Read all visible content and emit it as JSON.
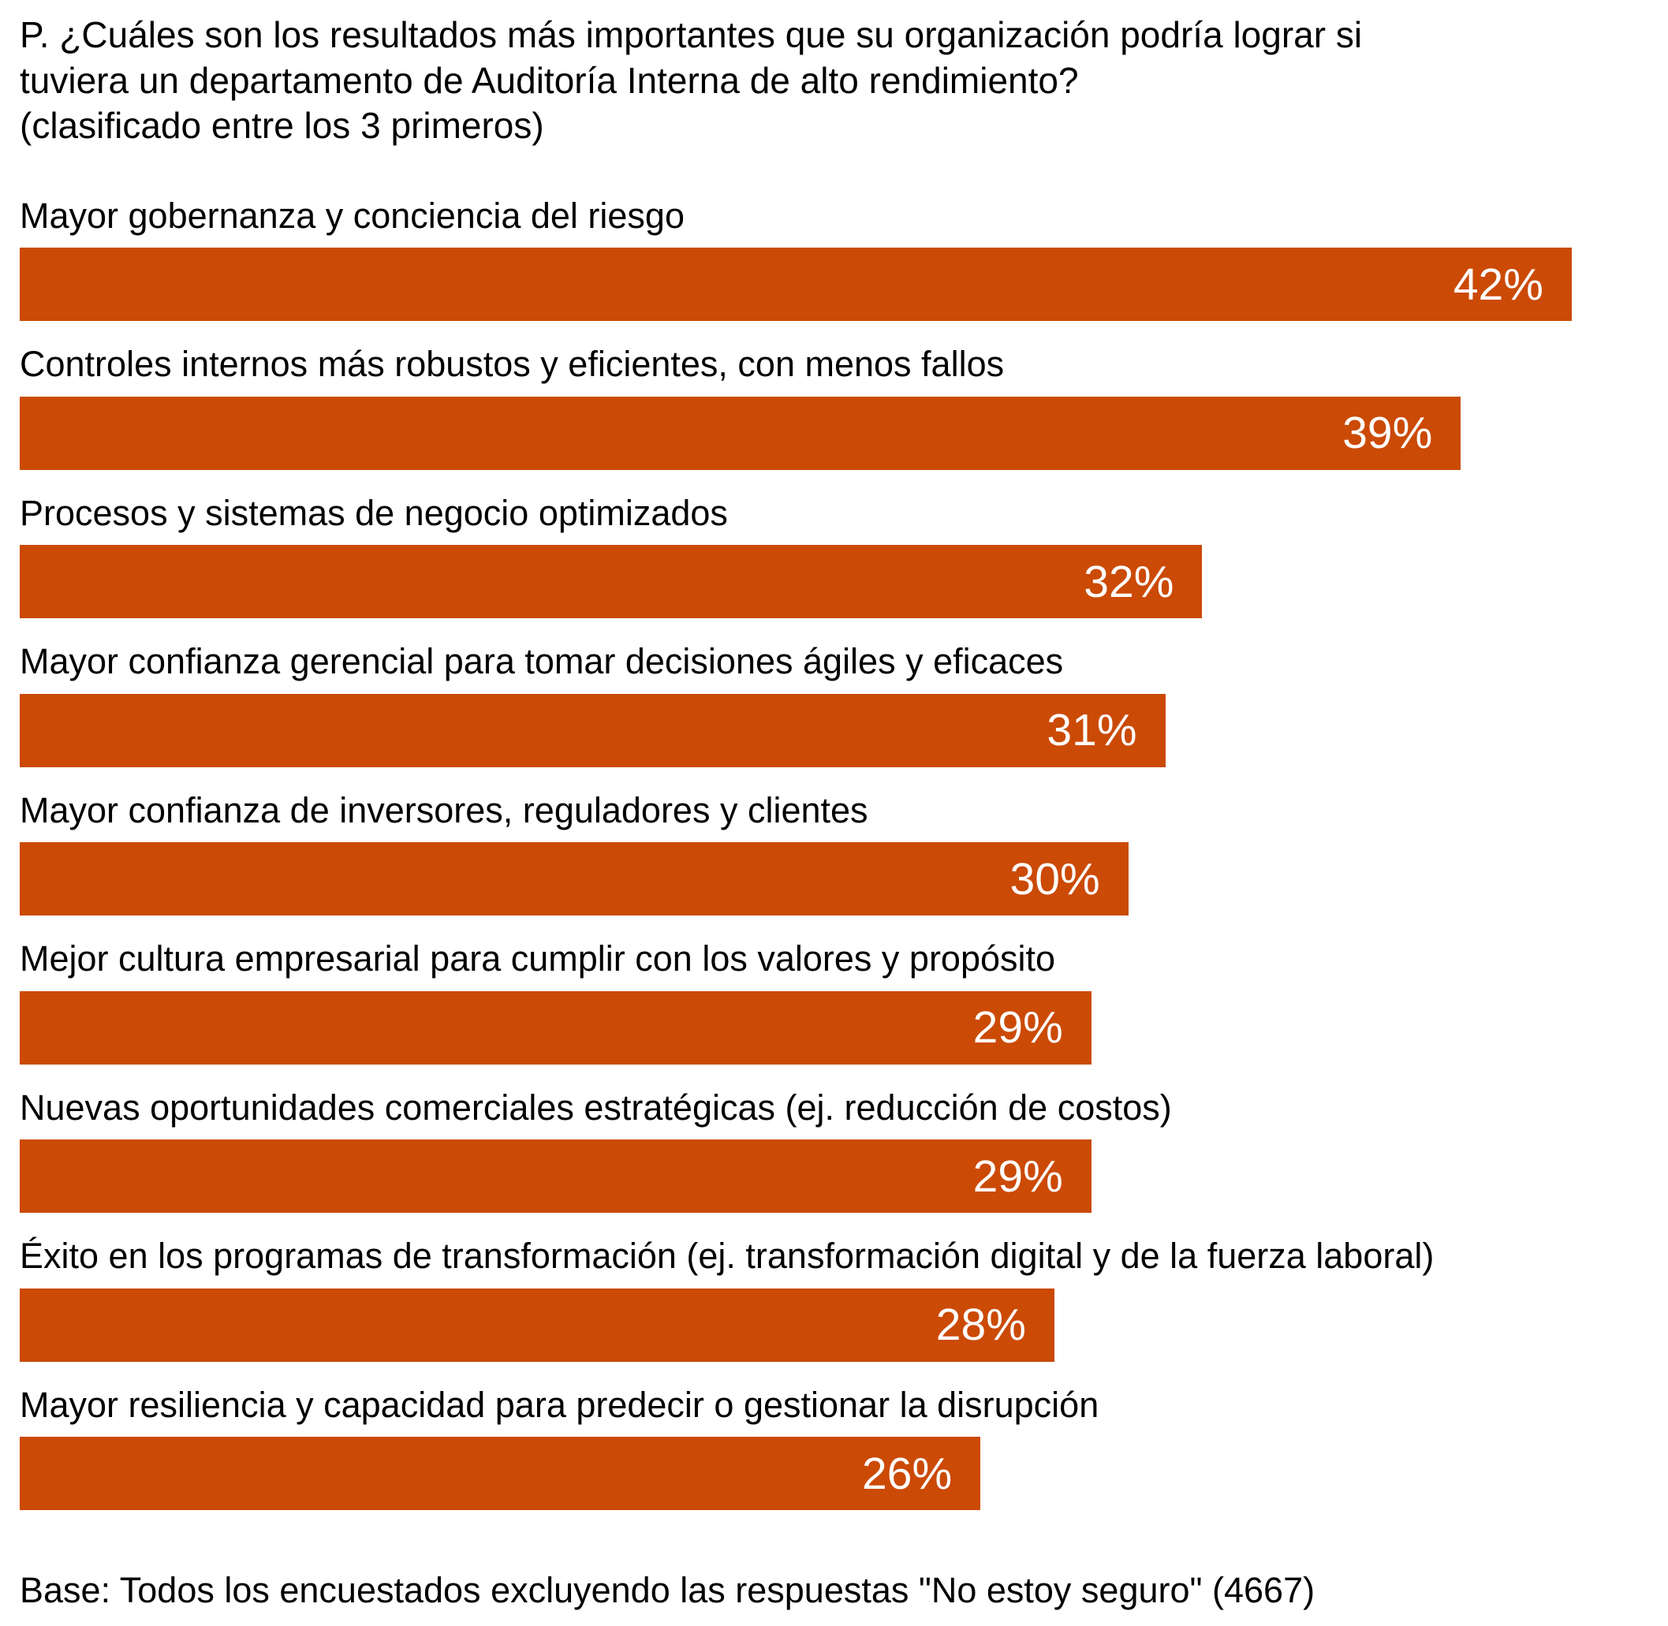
{
  "title": {
    "lines": [
      "P. ¿Cuáles son los resultados más importantes que su organización podría lograr si",
      "tuviera un departamento de Auditoría Interna de alto rendimiento?",
      "(clasificado entre los 3 primeros)"
    ],
    "full_text": "P. ¿Cuáles son los resultados más importantes que su organización podría lograr si tuviera un departamento de Auditoría Interna de alto rendimiento? (clasificado entre los 3 primeros)"
  },
  "base_note": "Base: Todos los encuestados excluyendo las respuestas \"No estoy seguro\" (4667)",
  "colors": {
    "bar": "#CB4A05",
    "label_text": "#000000",
    "value_text": "#FFFFFF",
    "background": "#FFFFFF"
  },
  "chart_data": {
    "type": "bar",
    "orientation": "horizontal",
    "title": "P. ¿Cuáles son los resultados más importantes que su organización podría lograr si tuviera un departamento de Auditoría Interna de alto rendimiento? (clasificado entre los 3 primeros)",
    "categories": [
      "Mayor gobernanza y conciencia del riesgo",
      "Controles internos más robustos y eficientes, con menos fallos",
      "Procesos y sistemas de negocio optimizados",
      "Mayor confianza gerencial para tomar decisiones ágiles y eficaces",
      "Mayor confianza de inversores, reguladores y clientes",
      "Mejor cultura empresarial para cumplir con los valores y propósito",
      "Nuevas oportunidades comerciales estratégicas (ej. reducción de costos)",
      "Éxito en los programas de transformación (ej. transformación digital y de la fuerza laboral)",
      "Mayor resiliencia y capacidad para predecir o gestionar la disrupción"
    ],
    "values": [
      42,
      39,
      32,
      31,
      30,
      29,
      29,
      28,
      26
    ],
    "value_labels": [
      "42%",
      "39%",
      "32%",
      "31%",
      "30%",
      "29%",
      "29%",
      "28%",
      "26%"
    ],
    "xlabel": "",
    "ylabel": "",
    "xlim": [
      0,
      44
    ],
    "grid": false,
    "legend": false,
    "axes_visible": false,
    "value_label_position": "inside-right",
    "base_note": "Base: Todos los encuestados excluyendo las respuestas \"No estoy seguro\" (4667)"
  }
}
